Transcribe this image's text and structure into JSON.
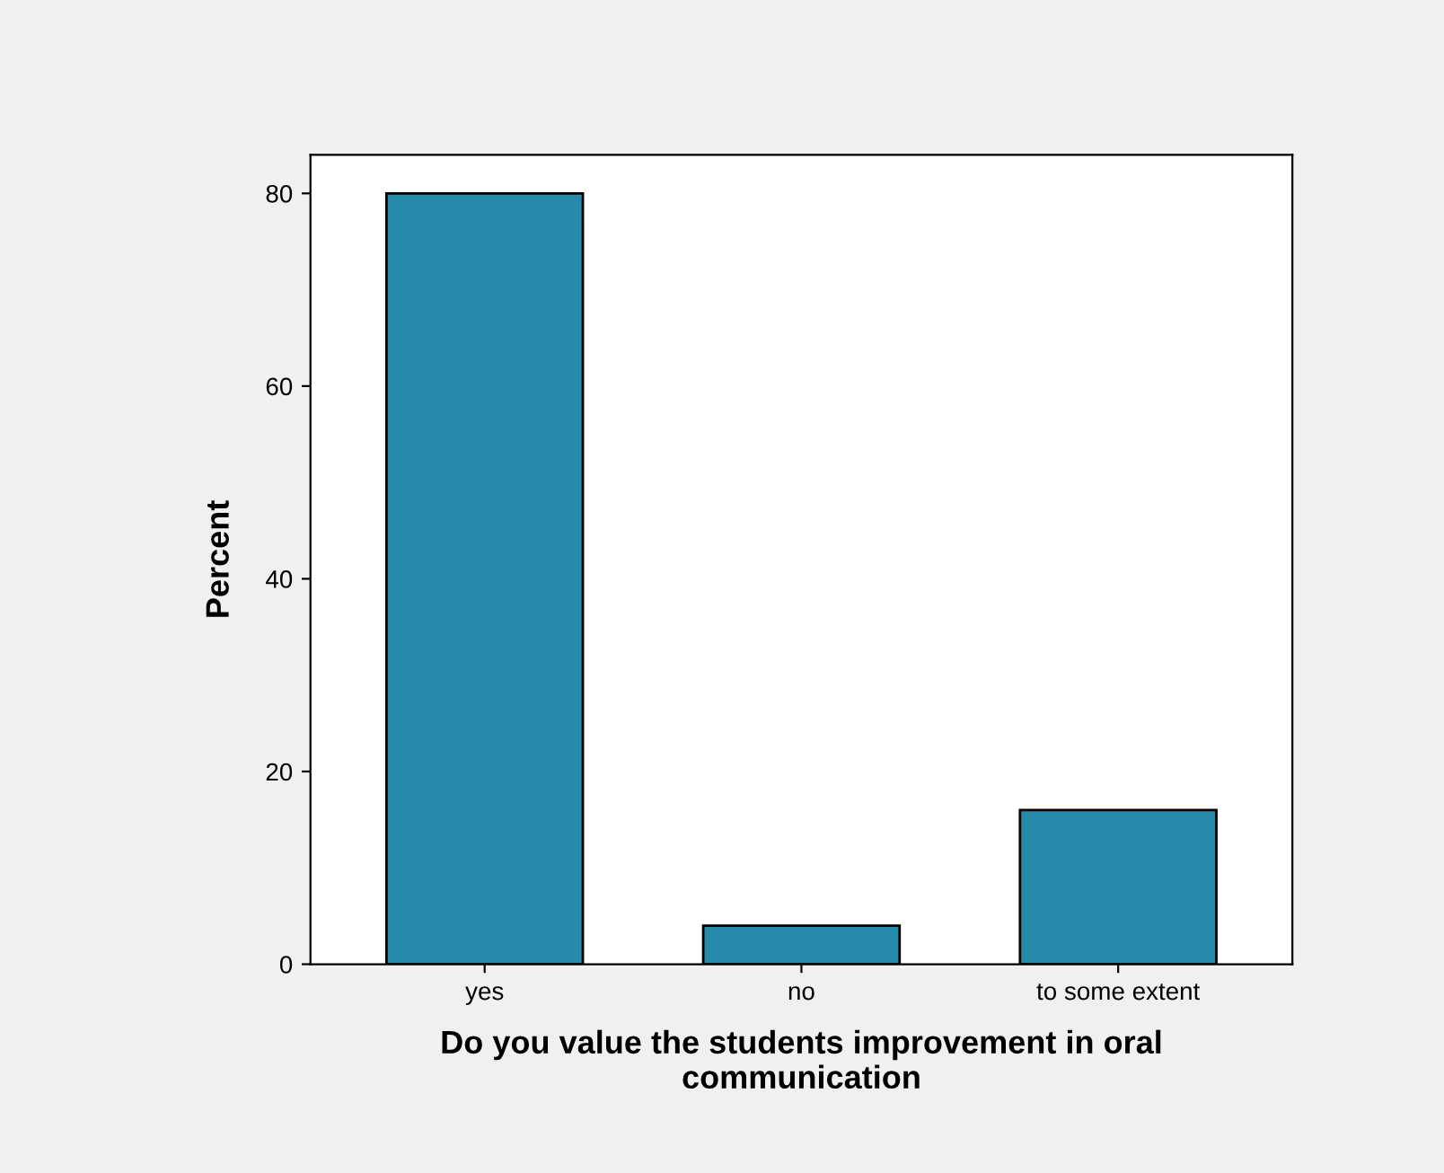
{
  "chart_data": {
    "type": "bar",
    "xlabel": "Do you value the students improvement in oral\ncommunication",
    "ylabel": "Percent",
    "categories": [
      "yes",
      "no",
      "to some extent"
    ],
    "values": [
      80,
      4,
      16
    ],
    "color": "#268aab",
    "ylim": [
      0,
      84
    ],
    "yticks": [
      0,
      20,
      40,
      60,
      80
    ],
    "grid": false
  }
}
